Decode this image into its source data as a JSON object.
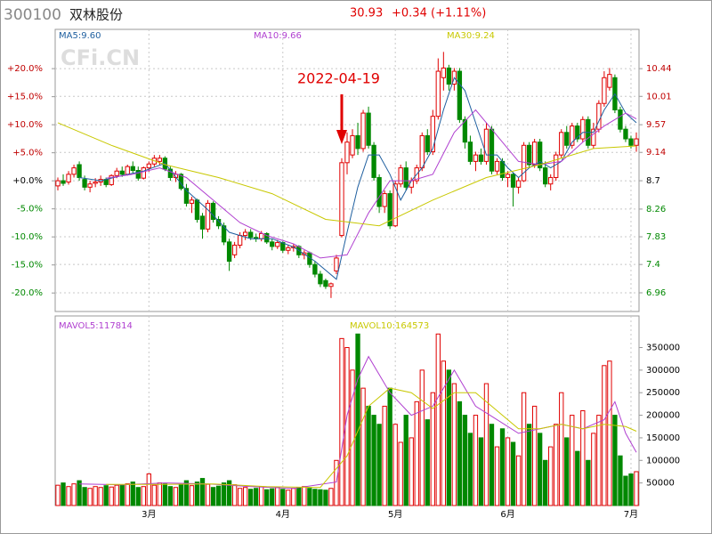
{
  "chart_data": {
    "type": "candlestick",
    "header": {
      "code": "300100",
      "name": "双林股份",
      "price": "30.93",
      "change": "+0.34",
      "change_pct": "(+1.11%)"
    },
    "watermark": "CFi.CN",
    "annotation": {
      "text": "2022-04-19",
      "x": 53
    },
    "categories": [
      null,
      null,
      null,
      null,
      null,
      null,
      null,
      null,
      null,
      null,
      null,
      null,
      null,
      null,
      null,
      null,
      null,
      "3月",
      null,
      null,
      null,
      null,
      null,
      null,
      null,
      null,
      null,
      null,
      null,
      null,
      null,
      null,
      null,
      null,
      null,
      null,
      null,
      null,
      null,
      null,
      null,
      null,
      "4月",
      null,
      null,
      null,
      null,
      null,
      null,
      null,
      null,
      null,
      null,
      null,
      null,
      null,
      null,
      null,
      null,
      null,
      null,
      null,
      null,
      "5月",
      null,
      null,
      null,
      null,
      null,
      null,
      null,
      null,
      null,
      null,
      null,
      null,
      null,
      null,
      null,
      null,
      null,
      null,
      null,
      null,
      "6月",
      null,
      null,
      null,
      null,
      null,
      null,
      null,
      null,
      null,
      null,
      null,
      null,
      null,
      null,
      null,
      null,
      null,
      null,
      null,
      null,
      null,
      null,
      "7月",
      null
    ],
    "open": [
      8.62,
      8.7,
      8.68,
      8.8,
      8.95,
      8.72,
      8.6,
      8.66,
      8.68,
      8.72,
      8.64,
      8.78,
      8.85,
      8.8,
      8.92,
      8.86,
      8.74,
      8.9,
      8.96,
      9.0,
      9.05,
      8.88,
      8.75,
      8.8,
      8.58,
      8.35,
      8.4,
      8.15,
      7.95,
      8.35,
      8.1,
      8.0,
      7.75,
      7.55,
      7.7,
      7.85,
      7.9,
      7.82,
      7.8,
      7.88,
      7.75,
      7.68,
      7.74,
      7.62,
      7.66,
      7.68,
      7.55,
      7.58,
      7.4,
      7.25,
      7.15,
      7.06,
      7.3,
      7.85,
      8.98,
      9.1,
      9.4,
      9.2,
      9.75,
      9.25,
      8.75,
      8.3,
      8.5,
      8.0,
      8.65,
      8.9,
      8.6,
      8.7,
      8.9,
      9.4,
      9.15,
      9.7,
      10.3,
      10.45,
      10.2,
      10.4,
      9.65,
      9.3,
      9.0,
      9.1,
      9.0,
      9.5,
      8.85,
      9.0,
      8.75,
      8.8,
      8.6,
      8.7,
      9.25,
      8.95,
      9.3,
      8.9,
      8.65,
      8.75,
      9.1,
      9.45,
      9.25,
      9.55,
      9.35,
      9.65,
      9.25,
      9.5,
      9.9,
      10.15,
      10.3,
      9.8,
      9.5,
      9.35,
      9.25
    ],
    "high": [
      8.75,
      8.8,
      8.85,
      8.95,
      9.0,
      8.78,
      8.7,
      8.74,
      8.78,
      8.75,
      8.8,
      8.9,
      8.92,
      8.95,
      9.0,
      8.92,
      8.92,
      9.0,
      9.1,
      9.1,
      9.08,
      8.92,
      8.85,
      8.82,
      8.65,
      8.45,
      8.42,
      8.2,
      8.4,
      8.38,
      8.15,
      8.05,
      7.8,
      7.75,
      7.9,
      7.95,
      7.95,
      7.88,
      7.92,
      7.9,
      7.8,
      7.78,
      7.76,
      7.7,
      7.72,
      7.7,
      7.62,
      7.6,
      7.45,
      7.3,
      7.18,
      7.12,
      7.55,
      9.05,
      9.45,
      9.5,
      9.6,
      9.8,
      9.85,
      9.3,
      8.8,
      8.55,
      8.55,
      8.7,
      8.95,
      9.0,
      8.75,
      8.95,
      9.45,
      9.5,
      9.8,
      10.6,
      10.7,
      10.5,
      10.45,
      10.45,
      9.7,
      9.4,
      9.15,
      9.2,
      9.6,
      9.55,
      9.05,
      9.05,
      8.85,
      8.82,
      8.75,
      9.3,
      9.3,
      9.35,
      9.35,
      9.0,
      8.8,
      9.15,
      9.5,
      9.55,
      9.6,
      9.6,
      9.7,
      9.7,
      9.6,
      9.95,
      10.4,
      10.45,
      10.35,
      9.85,
      9.55,
      9.4,
      9.45
    ],
    "low": [
      8.55,
      8.62,
      8.64,
      8.75,
      8.7,
      8.55,
      8.52,
      8.6,
      8.62,
      8.6,
      8.62,
      8.74,
      8.76,
      8.78,
      8.82,
      8.7,
      8.72,
      8.84,
      8.92,
      8.95,
      8.85,
      8.7,
      8.68,
      8.55,
      8.3,
      8.2,
      8.05,
      7.8,
      7.9,
      8.05,
      7.95,
      7.7,
      7.3,
      7.5,
      7.65,
      7.78,
      7.78,
      7.75,
      7.76,
      7.72,
      7.62,
      7.64,
      7.58,
      7.56,
      7.6,
      7.5,
      7.48,
      7.35,
      7.2,
      7.05,
      7.02,
      6.88,
      7.25,
      7.82,
      8.8,
      9.05,
      9.1,
      9.15,
      9.2,
      8.7,
      8.2,
      8.2,
      7.95,
      7.98,
      8.6,
      8.55,
      8.5,
      8.65,
      8.85,
      9.1,
      9.1,
      9.65,
      10.1,
      10.1,
      10.1,
      9.6,
      9.2,
      8.95,
      8.85,
      8.95,
      8.95,
      8.8,
      8.8,
      8.7,
      8.6,
      8.3,
      8.5,
      8.68,
      8.9,
      8.9,
      8.85,
      8.6,
      8.55,
      8.7,
      9.05,
      9.2,
      9.2,
      9.3,
      9.3,
      9.2,
      9.2,
      9.45,
      9.85,
      10.1,
      9.75,
      9.45,
      9.3,
      9.2,
      9.15
    ],
    "close": [
      8.7,
      8.66,
      8.8,
      8.9,
      8.75,
      8.6,
      8.65,
      8.68,
      8.72,
      8.64,
      8.78,
      8.85,
      8.8,
      8.92,
      8.86,
      8.74,
      8.9,
      8.96,
      9.05,
      9.05,
      8.88,
      8.75,
      8.8,
      8.58,
      8.35,
      8.4,
      8.1,
      7.95,
      8.35,
      8.1,
      8.0,
      7.75,
      7.45,
      7.7,
      7.85,
      7.9,
      7.82,
      7.8,
      7.88,
      7.75,
      7.68,
      7.74,
      7.62,
      7.66,
      7.68,
      7.55,
      7.58,
      7.4,
      7.25,
      7.1,
      7.06,
      7.1,
      7.5,
      8.98,
      9.3,
      9.4,
      9.2,
      9.75,
      9.25,
      8.75,
      8.3,
      8.5,
      8.0,
      8.65,
      8.9,
      8.6,
      8.7,
      8.9,
      9.4,
      9.15,
      9.7,
      10.4,
      10.45,
      10.2,
      10.4,
      9.65,
      9.3,
      9.0,
      9.1,
      9.0,
      9.5,
      8.85,
      9.0,
      8.75,
      8.8,
      8.6,
      8.7,
      9.25,
      8.95,
      9.3,
      8.9,
      8.65,
      8.75,
      9.1,
      9.45,
      9.25,
      9.55,
      9.35,
      9.65,
      9.25,
      9.5,
      9.9,
      10.3,
      10.35,
      9.8,
      9.5,
      9.35,
      9.25,
      9.35
    ],
    "up_color": "#e00000",
    "down_color": "#008800",
    "ylim": [
      6.67,
      11.05
    ],
    "yticks": [
      6.96,
      7.4,
      7.83,
      8.26,
      8.7,
      9.14,
      9.57,
      10.01,
      10.44
    ],
    "y2lim": [
      -23.3,
      27.0
    ],
    "y2ticks": [
      {
        "value": -20,
        "label": "-20.0%"
      },
      {
        "value": -15,
        "label": "-15.0%"
      },
      {
        "value": -10,
        "label": "-10.0%"
      },
      {
        "value": -5,
        "label": "-5.0%"
      },
      {
        "value": 0,
        "label": "+0.0%"
      },
      {
        "value": 5,
        "label": "+5.0%"
      },
      {
        "value": 10,
        "label": "+10.0%"
      },
      {
        "value": 15,
        "label": "+15.0%"
      },
      {
        "value": 20,
        "label": "+20.0%"
      }
    ],
    "grid": true,
    "overlays": [
      {
        "name": "MA5:9.60",
        "color": "#1f5f9f",
        "x": [
          4,
          8,
          12,
          16,
          20,
          24,
          28,
          32,
          36,
          40,
          44,
          48,
          52,
          54,
          56,
          58,
          60,
          62,
          64,
          66,
          68,
          70,
          72,
          74,
          76,
          78,
          80,
          82,
          84,
          86,
          88,
          90,
          92,
          94,
          96,
          98,
          100,
          102,
          104,
          106,
          108
        ],
        "values": [
          8.75,
          8.7,
          8.78,
          8.85,
          8.97,
          8.55,
          8.25,
          7.9,
          7.8,
          7.8,
          7.67,
          7.45,
          7.17,
          7.9,
          8.6,
          9.1,
          9.1,
          8.8,
          8.4,
          8.7,
          8.9,
          9.2,
          9.8,
          10.3,
          10.1,
          9.6,
          9.1,
          9.1,
          8.9,
          8.75,
          8.9,
          9.0,
          8.9,
          9.0,
          9.3,
          9.45,
          9.45,
          9.8,
          10.05,
          9.75,
          9.6
        ]
      },
      {
        "name": "MA10:9.66",
        "color": "#b040d0",
        "x": [
          9,
          14,
          19,
          24,
          29,
          34,
          39,
          44,
          49,
          54,
          58,
          62,
          66,
          70,
          74,
          78,
          82,
          86,
          90,
          94,
          98,
          102,
          106,
          108
        ],
        "values": [
          8.74,
          8.8,
          8.9,
          8.75,
          8.4,
          8.05,
          7.85,
          7.72,
          7.5,
          7.55,
          8.2,
          8.7,
          8.7,
          8.8,
          9.45,
          9.8,
          9.4,
          9.0,
          8.95,
          9.0,
          9.3,
          9.55,
          9.75,
          9.66
        ]
      },
      {
        "name": "MA30:9.24",
        "color": "#c8c800",
        "x": [
          0,
          10,
          20,
          30,
          40,
          50,
          60,
          70,
          80,
          90,
          100,
          108
        ],
        "values": [
          9.6,
          9.25,
          8.95,
          8.75,
          8.5,
          8.1,
          8.0,
          8.4,
          8.75,
          8.95,
          9.2,
          9.24
        ]
      }
    ],
    "volume": {
      "values": [
        45000,
        50000,
        42000,
        48000,
        55000,
        40000,
        38000,
        42000,
        40000,
        44000,
        41000,
        45000,
        46000,
        48000,
        52000,
        40000,
        42000,
        70000,
        45000,
        50000,
        48000,
        42000,
        40000,
        46000,
        55000,
        44000,
        52000,
        60000,
        47000,
        40000,
        43000,
        50000,
        55000,
        46000,
        38000,
        40000,
        36000,
        38000,
        42000,
        35000,
        37000,
        40000,
        36000,
        34000,
        38000,
        40000,
        42000,
        38000,
        36000,
        35000,
        34000,
        38000,
        100000,
        370000,
        350000,
        300000,
        380000,
        260000,
        220000,
        200000,
        180000,
        220000,
        260000,
        180000,
        140000,
        200000,
        150000,
        230000,
        300000,
        190000,
        250000,
        380000,
        320000,
        300000,
        270000,
        230000,
        200000,
        160000,
        200000,
        150000,
        270000,
        180000,
        130000,
        170000,
        150000,
        140000,
        110000,
        250000,
        180000,
        220000,
        160000,
        100000,
        130000,
        180000,
        250000,
        150000,
        200000,
        120000,
        210000,
        100000,
        160000,
        200000,
        310000,
        320000,
        200000,
        110000,
        65000,
        70000,
        75000
      ],
      "ylim": [
        0,
        420000
      ],
      "yticks": [
        50000,
        100000,
        150000,
        200000,
        250000,
        300000,
        350000
      ],
      "overlays": [
        {
          "name": "MAVOL5:117814",
          "color": "#b040d0",
          "x": [
            4,
            12,
            20,
            28,
            36,
            44,
            52,
            54,
            56,
            58,
            62,
            66,
            70,
            74,
            78,
            82,
            86,
            90,
            94,
            98,
            102,
            104,
            106,
            108
          ],
          "values": [
            48000,
            46000,
            50000,
            48000,
            42000,
            38000,
            52000,
            200000,
            280000,
            330000,
            250000,
            200000,
            220000,
            300000,
            220000,
            190000,
            160000,
            170000,
            180000,
            170000,
            190000,
            230000,
            160000,
            117814
          ]
        },
        {
          "name": "MAVOL10:164573",
          "color": "#c8c800",
          "x": [
            9,
            19,
            29,
            39,
            49,
            54,
            58,
            62,
            66,
            70,
            74,
            78,
            82,
            86,
            90,
            94,
            98,
            102,
            106,
            108
          ],
          "values": [
            47000,
            47000,
            48000,
            42000,
            40000,
            110000,
            220000,
            260000,
            250000,
            215000,
            250000,
            250000,
            210000,
            170000,
            170000,
            180000,
            170000,
            180000,
            175000,
            164573
          ]
        }
      ]
    }
  }
}
